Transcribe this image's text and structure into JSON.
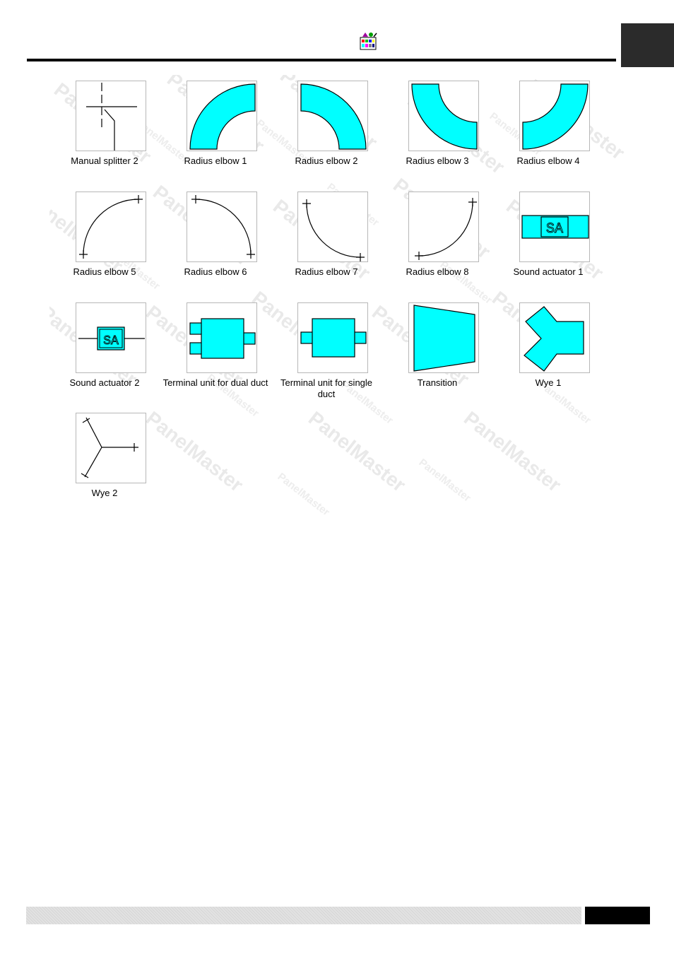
{
  "header": {
    "icon": "toolbox-palette-icon"
  },
  "watermark": {
    "text": "PanelMaster"
  },
  "gallery": {
    "items": [
      {
        "label": "Manual splitter 2",
        "icon": "manual-splitter-2-icon"
      },
      {
        "label": "Radius elbow 1",
        "icon": "radius-elbow-1-icon"
      },
      {
        "label": "Radius elbow 2",
        "icon": "radius-elbow-2-icon"
      },
      {
        "label": "Radius elbow 3",
        "icon": "radius-elbow-3-icon"
      },
      {
        "label": "Radius elbow 4",
        "icon": "radius-elbow-4-icon"
      },
      {
        "label": "Radius elbow 5",
        "icon": "radius-elbow-5-icon"
      },
      {
        "label": "Radius elbow 6",
        "icon": "radius-elbow-6-icon"
      },
      {
        "label": "Radius elbow 7",
        "icon": "radius-elbow-7-icon"
      },
      {
        "label": "Radius elbow 8",
        "icon": "radius-elbow-8-icon"
      },
      {
        "label": "Sound actuator 1",
        "icon": "sound-actuator-1-icon",
        "text": "SA"
      },
      {
        "label": "Sound actuator 2",
        "icon": "sound-actuator-2-icon",
        "text": "SA"
      },
      {
        "label": "Terminal unit for dual duct",
        "icon": "terminal-unit-dual-duct-icon"
      },
      {
        "label": "Terminal unit for single duct",
        "icon": "terminal-unit-single-duct-icon"
      },
      {
        "label": "Transition",
        "icon": "transition-icon"
      },
      {
        "label": "Wye 1",
        "icon": "wye-1-icon"
      },
      {
        "label": "Wye 2",
        "icon": "wye-2-icon"
      }
    ]
  },
  "colors": {
    "shape_fill": "#00ffff",
    "stroke": "#000000",
    "thumb_border": "#b7b7b7",
    "watermark": "#e9e9e9"
  }
}
